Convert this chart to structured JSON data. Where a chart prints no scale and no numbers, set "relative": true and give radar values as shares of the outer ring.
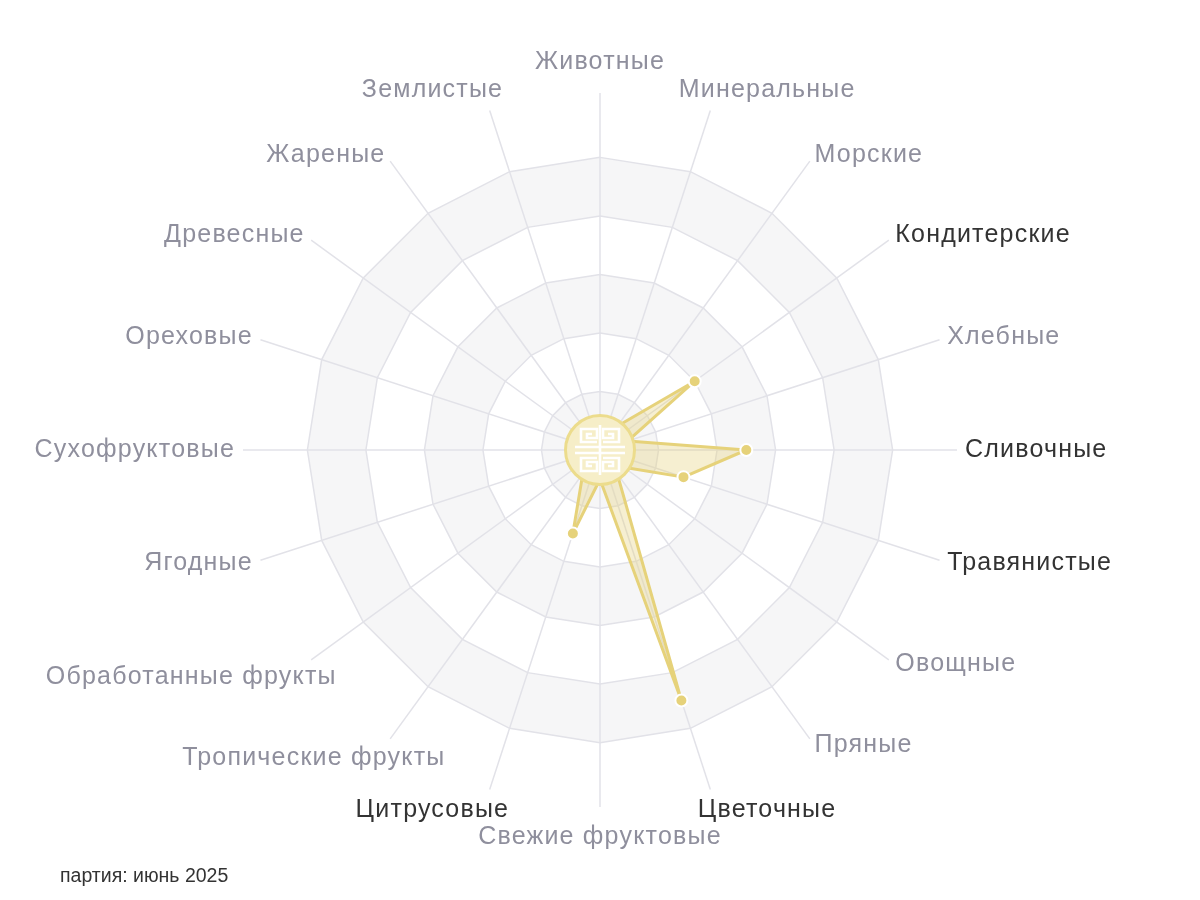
{
  "chart_data": {
    "type": "radar",
    "relative": true,
    "grid": true,
    "marker": "circle",
    "categories": [
      "Животные",
      "Минеральные",
      "Морские",
      "Кондитерские",
      "Хлебные",
      "Сливочные",
      "Травянистые",
      "Овощные",
      "Пряные",
      "Цветочные",
      "Свежие фруктовые",
      "Цитрусовые",
      "Тропические фрукты",
      "Обработанные фрукты",
      "Ягодные",
      "Сухофруктовые",
      "Ореховые",
      "Древесные",
      "Жареные",
      "Землистые"
    ],
    "series": [
      {
        "color": "#e6d27a",
        "values": [
          0.1,
          0.1,
          0.1,
          0.4,
          0.1,
          0.5,
          0.3,
          0.1,
          0.1,
          0.9,
          0.1,
          0.3,
          0.1,
          0.1,
          0.1,
          0.1,
          0.1,
          0.1,
          0.1,
          0.1
        ]
      }
    ],
    "annotations": [
      "партия: июнь 2025"
    ]
  }
}
